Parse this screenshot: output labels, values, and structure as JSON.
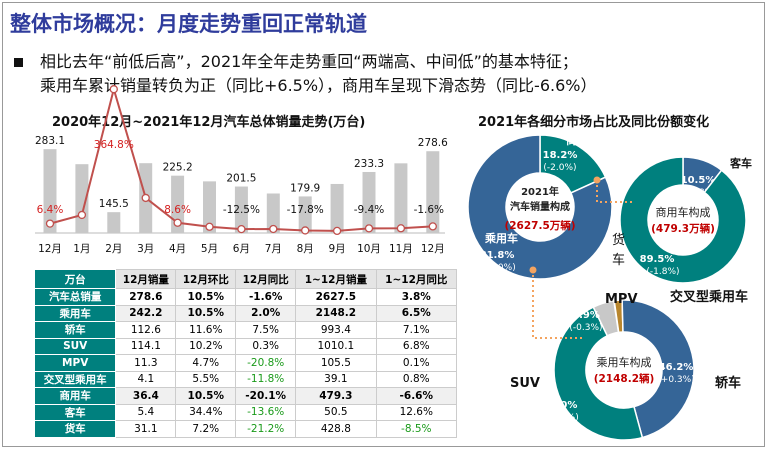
{
  "title": "整体市场概况：月度走势重回正常轨道",
  "bullet_line1": "相比去年“前低后高”，2021年全年走势重回“两端高、中间低”的基本特征；",
  "bullet_line2": "乘用车累计销量转负为正（同比+6.5%），商用车呈现下滑态势（同比-6.6%）",
  "chart_data": [
    {
      "type": "bar+line",
      "title": "2020年12月~2021年12月汽车总体销量走势(万台)",
      "categories": [
        "12月",
        "1月",
        "2月",
        "3月",
        "4月",
        "5月",
        "6月",
        "7月",
        "8月",
        "9月",
        "10月",
        "11月",
        "12月"
      ],
      "bar_values": [
        283.1,
        250.3,
        145.5,
        252.5,
        225.2,
        212.8,
        201.5,
        186.3,
        179.9,
        207.1,
        233.3,
        252.2,
        278.6
      ],
      "bar_labels": [
        "283.1",
        "",
        "145.5",
        "",
        "225.2",
        "",
        "201.5",
        "",
        "179.9",
        "",
        "233.3",
        "",
        "278.6"
      ],
      "line_values": [
        6.4,
        29.5,
        364.8,
        74.9,
        8.6,
        -3.1,
        -12.5,
        -11.9,
        -17.8,
        -19.6,
        -9.4,
        -9.1,
        -1.6
      ],
      "line_labels": [
        "6.4%",
        "",
        "364.8%",
        "",
        "8.6%",
        "",
        "-12.5%",
        "",
        "-17.8%",
        "",
        "-9.4%",
        "",
        "-1.6%"
      ],
      "bar_color": "#c8c8c8",
      "line_color": "#c0504d",
      "label_red": "#d42020",
      "bar_ylim": [
        100,
        300
      ]
    },
    {
      "type": "table",
      "header": [
        "万台",
        "12月销量",
        "12月环比",
        "12月同比",
        "1~12月销量",
        "1~12月同比"
      ],
      "rows": [
        [
          "汽车总销量",
          "278.6",
          "10.5%",
          "-1.6%",
          "2627.5",
          "3.8%"
        ],
        [
          "乘用车",
          "242.2",
          "10.5%",
          "2.0%",
          "2148.2",
          "6.5%"
        ],
        [
          "轿车",
          "112.6",
          "11.6%",
          "7.5%",
          "993.4",
          "7.1%"
        ],
        [
          "SUV",
          "114.1",
          "10.2%",
          "0.3%",
          "1010.1",
          "6.8%"
        ],
        [
          "MPV",
          "11.3",
          "4.7%",
          "-20.8%",
          "105.5",
          "0.1%"
        ],
        [
          "交叉型乘用车",
          "4.1",
          "5.5%",
          "-11.8%",
          "39.1",
          "0.8%"
        ],
        [
          "商用车",
          "36.4",
          "10.5%",
          "-20.1%",
          "479.3",
          "-6.6%"
        ],
        [
          "客车",
          "5.4",
          "34.4%",
          "-13.6%",
          "50.5",
          "12.6%"
        ],
        [
          "货车",
          "31.1",
          "7.2%",
          "-21.2%",
          "428.8",
          "-8.5%"
        ]
      ],
      "bold_rows": [
        0,
        1,
        6
      ],
      "shaded_rows": [
        1,
        6
      ],
      "green_cells": [
        [
          4,
          3
        ],
        [
          5,
          3
        ],
        [
          7,
          3
        ],
        [
          8,
          3
        ],
        [
          8,
          5
        ]
      ]
    },
    {
      "type": "pie",
      "title": "2021年各细分市场占比及同比份额变化",
      "donuts": [
        {
          "center_lines": [
            "2021年",
            "汽车销量构成"
          ],
          "center_total": "(2627.5万辆)",
          "slices": [
            {
              "name": "商用车",
              "value": 18.2,
              "label": "18.2%",
              "change": "(-2.0%)",
              "color": "#00807e"
            },
            {
              "name": "乘用车",
              "value": 81.8,
              "label": "81.8%",
              "change": "(+2.0%)",
              "color": "#356597"
            }
          ]
        },
        {
          "center_lines": [
            "商用车构成"
          ],
          "center_total": "(479.3万辆)",
          "slices": [
            {
              "name": "客车",
              "value": 10.5,
              "label": "10.5%",
              "change": "(+1.8%)",
              "color": "#356597"
            },
            {
              "name": "货车",
              "value": 89.5,
              "label": "89.5%",
              "change": "(-1.8%)",
              "color": "#00807e"
            }
          ]
        },
        {
          "center_lines": [
            "乘用车构成"
          ],
          "center_total": "(2148.2辆)",
          "slices": [
            {
              "name": "交叉型乘用车",
              "value": 1.8,
              "label": "1.8%",
              "change": "(-0.1%)",
              "color": "#b8862e"
            },
            {
              "name": "轿车",
              "value": 46.2,
              "label": "46.2%",
              "change": "(+0.3%)",
              "color": "#356597"
            },
            {
              "name": "SUV",
              "value": 47.0,
              "label": "47.0%",
              "change": "(+0.1%)",
              "color": "#00807e"
            },
            {
              "name": "MPV",
              "value": 4.9,
              "label": "4.9%",
              "change": "(-0.3%)",
              "color": "#c8c8c8"
            }
          ]
        }
      ]
    }
  ]
}
